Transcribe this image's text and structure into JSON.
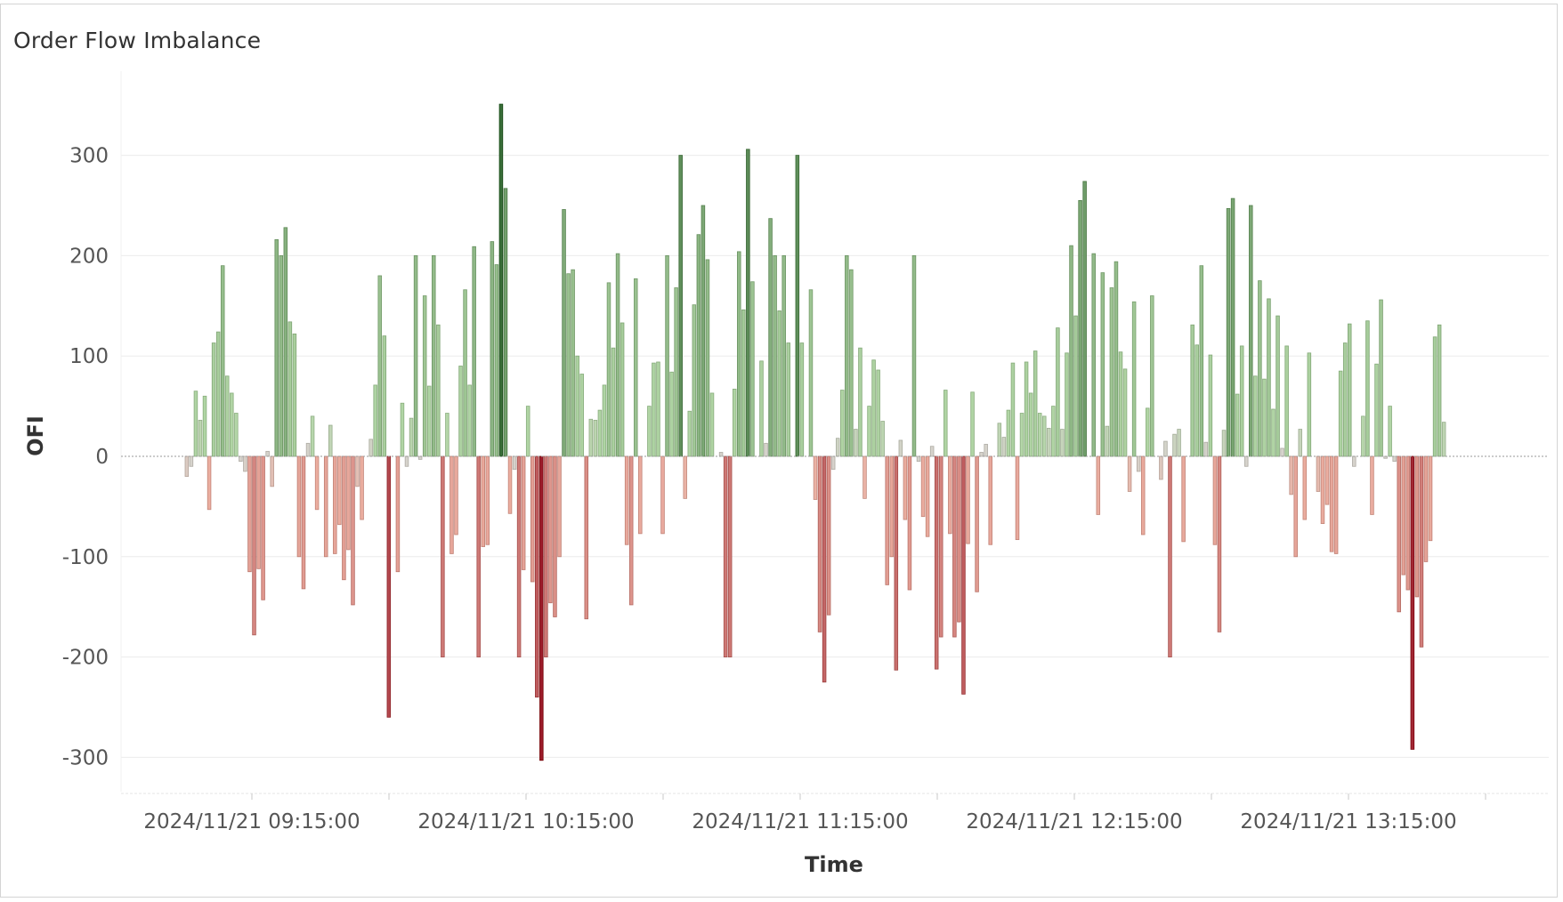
{
  "title": "Order Flow Imbalance",
  "chart_data": {
    "type": "bar",
    "title": "Order Flow Imbalance",
    "xlabel": "Time",
    "ylabel": "OFI",
    "ylim": [
      -335,
      360
    ],
    "y_ticks": [
      300,
      200,
      100,
      0,
      -100,
      -200,
      -300
    ],
    "grid": true,
    "legend": "none",
    "x_tick_labels": [
      "2024/11/21 09:15:00",
      "2024/11/21 10:15:00",
      "2024/11/21 11:15:00",
      "2024/11/21 12:15:00",
      "2024/11/21 13:15:00"
    ],
    "color_scale": {
      "negative_max": "#9b1b2a",
      "neutral": "#d6d3cc",
      "positive_max": "#3a6e39"
    },
    "values": [
      -20,
      -10,
      65,
      36,
      60,
      -53,
      113,
      124,
      190,
      80,
      63,
      43,
      -5,
      -15,
      -115,
      -178,
      -112,
      -143,
      5,
      -30,
      216,
      200,
      228,
      134,
      122,
      -100,
      -132,
      13,
      40,
      -53,
      0,
      -100,
      31,
      -97,
      -68,
      -123,
      -93,
      -148,
      -30,
      -63,
      0,
      17,
      71,
      180,
      120,
      -260,
      0,
      -115,
      53,
      -10,
      38,
      200,
      -3,
      160,
      70,
      200,
      131,
      -200,
      43,
      -97,
      -78,
      90,
      166,
      71,
      209,
      -200,
      -90,
      -88,
      214,
      191,
      351,
      267,
      -57,
      -13,
      -200,
      -113,
      50,
      -125,
      -240,
      -303,
      -200,
      -146,
      -160,
      -100,
      246,
      182,
      186,
      100,
      82,
      -162,
      37,
      36,
      46,
      71,
      173,
      108,
      202,
      133,
      -88,
      -148,
      177,
      -77,
      0,
      50,
      93,
      94,
      -77,
      200,
      84,
      168,
      300,
      -42,
      45,
      151,
      221,
      250,
      196,
      63,
      0,
      4,
      -200,
      -200,
      67,
      204,
      146,
      306,
      174,
      0,
      95,
      13,
      237,
      200,
      145,
      200,
      113,
      0,
      300,
      113,
      0,
      166,
      -43,
      -175,
      -225,
      -158,
      -13,
      18,
      66,
      200,
      186,
      27,
      108,
      -42,
      50,
      96,
      86,
      35,
      -128,
      -100,
      -213,
      16,
      -63,
      -133,
      200,
      -5,
      -60,
      -80,
      10,
      -212,
      -180,
      66,
      -77,
      -180,
      -165,
      -237,
      -87,
      64,
      -135,
      4,
      12,
      -88,
      0,
      33,
      19,
      46,
      93,
      -83,
      43,
      94,
      63,
      105,
      43,
      40,
      28,
      50,
      128,
      27,
      103,
      210,
      140,
      255,
      274,
      0,
      202,
      -58,
      183,
      30,
      168,
      194,
      104,
      87,
      -35,
      154,
      -15,
      -78,
      48,
      160,
      0,
      -23,
      15,
      -200,
      22,
      27,
      -85,
      0,
      131,
      111,
      190,
      14,
      101,
      -88,
      -175,
      26,
      247,
      257,
      62,
      110,
      -10,
      250,
      80,
      175,
      77,
      157,
      47,
      140,
      8,
      110,
      -38,
      -100,
      27,
      -63,
      103,
      0,
      -35,
      -67,
      -48,
      -95,
      -97,
      85,
      113,
      132,
      -10,
      0,
      40,
      135,
      -58,
      92,
      156,
      -2,
      50,
      -5,
      -155,
      -118,
      -133,
      -292,
      -140,
      -190,
      -105,
      -84,
      119,
      131,
      34
    ]
  }
}
